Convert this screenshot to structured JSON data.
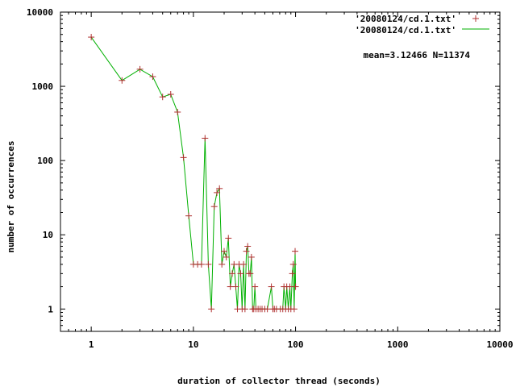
{
  "chart_data": {
    "type": "line",
    "title": "",
    "xlabel": "duration of collector thread (seconds)",
    "ylabel": "number of occurrences",
    "xscale": "log",
    "yscale": "log",
    "xlim": [
      0.5,
      10000
    ],
    "ylim": [
      0.5,
      10000
    ],
    "xticks": [
      1,
      10,
      100,
      1000,
      10000
    ],
    "xtick_labels": [
      "1",
      "10",
      "100",
      "1000",
      "10000"
    ],
    "yticks": [
      1,
      10,
      100,
      1000,
      10000
    ],
    "ytick_labels": [
      "1",
      "10",
      "100",
      "1000",
      "10000"
    ],
    "grid": false,
    "legend_position": "top-right",
    "annotation": "mean=3.12466 N=11374",
    "colors": {
      "points": "#b03030",
      "line": "#00b000",
      "axes": "#000000"
    },
    "series": [
      {
        "name": "'20080124/cd.1.txt'",
        "style": "points",
        "marker": "plus",
        "color": "#b03030"
      },
      {
        "name": "'20080124/cd.1.txt'",
        "style": "lines",
        "color": "#00b000"
      }
    ],
    "x": [
      1,
      2,
      3,
      4,
      5,
      6,
      7,
      8,
      9,
      10,
      11,
      12,
      13,
      14,
      15,
      16,
      17,
      18,
      19,
      20,
      21,
      22,
      23,
      24,
      25,
      26,
      27,
      28,
      29,
      30,
      31,
      32,
      33,
      34,
      35,
      36,
      37,
      38,
      39,
      40,
      41,
      43,
      45,
      47,
      50,
      53,
      58,
      60,
      62,
      65,
      71,
      75,
      77,
      80,
      82,
      85,
      88,
      90,
      93,
      95,
      97,
      99,
      100
    ],
    "y": [
      4600,
      1200,
      1700,
      1350,
      720,
      780,
      450,
      110,
      18,
      4,
      4,
      4,
      200,
      4,
      1,
      24,
      37,
      42,
      4,
      6,
      5,
      9,
      2,
      3,
      4,
      2,
      1,
      4,
      3,
      1,
      4,
      1,
      6,
      7,
      3,
      3,
      5,
      1,
      1,
      2,
      1,
      1,
      1,
      1,
      1,
      1,
      2,
      1,
      1,
      1,
      1,
      1,
      2,
      1,
      2,
      1,
      2,
      1,
      3,
      4,
      1,
      6,
      2
    ]
  }
}
